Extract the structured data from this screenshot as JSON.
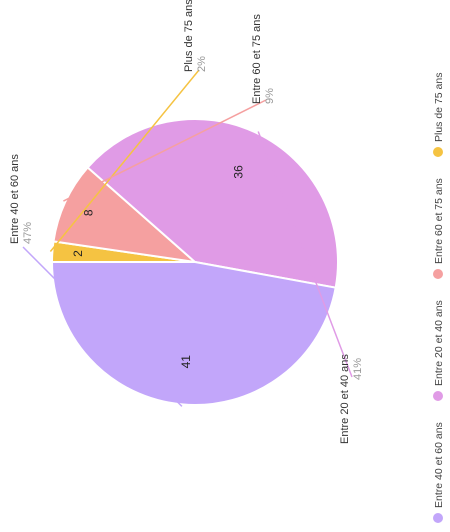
{
  "chart_data": {
    "type": "pie",
    "title": "",
    "legend_position": "bottom",
    "slices": [
      {
        "label": "Plus de 75 ans",
        "value": 2,
        "percent": "2%",
        "color": "#f5c342"
      },
      {
        "label": "Entre 60 et 75 ans",
        "value": 8,
        "percent": "9%",
        "color": "#f5a0a0"
      },
      {
        "label": "Entre 20 et 40 ans",
        "value": 36,
        "percent": "41%",
        "color": "#e09be6"
      },
      {
        "label": "Entre 40 et 60 ans",
        "value": 41,
        "percent": "47%",
        "color": "#c2a6fa"
      }
    ],
    "legend": [
      {
        "label": "Entre 40 et 60 ans",
        "color": "#c2a6fa"
      },
      {
        "label": "Entre 20 et 40 ans",
        "color": "#e09be6"
      },
      {
        "label": "Entre 60 et 75 ans",
        "color": "#f5a0a0"
      },
      {
        "label": "Plus de 75 ans",
        "color": "#f5c342"
      }
    ]
  }
}
